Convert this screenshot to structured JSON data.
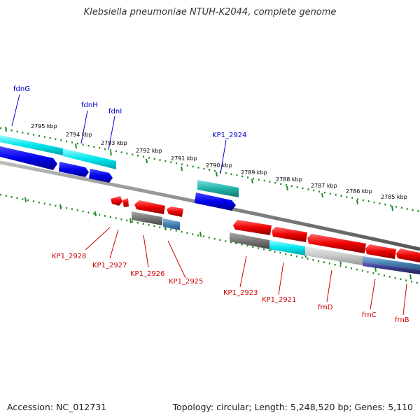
{
  "title": "Klebsiella pneumoniae NTUH-K2044, complete genome",
  "footer": {
    "accession": "Accession: NC_012731",
    "summary": "Topology: circular; Length: 5,248,520 bp; Genes: 5,110"
  },
  "scale_labels": [
    "2795 kbp",
    "2794 kbp",
    "2793 kbp",
    "2792 kbp",
    "2791 kbp",
    "2790 kbp",
    "2789 kbp",
    "2788 kbp",
    "2787 kbp",
    "2786 kbp",
    "2785 kbp"
  ],
  "forward_genes": [
    "fdnG",
    "fdnH",
    "fdnI",
    "KP1_2924"
  ],
  "reverse_genes": [
    "KP1_2928",
    "KP1_2927",
    "KP1_2926",
    "KP1_2925",
    "KP1_2923",
    "KP1_2921",
    "frnD",
    "frnC",
    "frnB"
  ],
  "colors": {
    "forward_label": "#0000cc",
    "reverse_label": "#cc0000",
    "cds_forward": "#0000ee",
    "cds_reverse": "#ee0000",
    "backbone": "#888888",
    "ticks": "#228822",
    "gene_cyan": "#00e5ee",
    "gene_teal": "#20b2aa",
    "gene_gray": "#777777",
    "gene_light_gray": "#c8c8c8",
    "gene_steel": "#4682b4",
    "gene_navy": "#3a3a8c"
  }
}
